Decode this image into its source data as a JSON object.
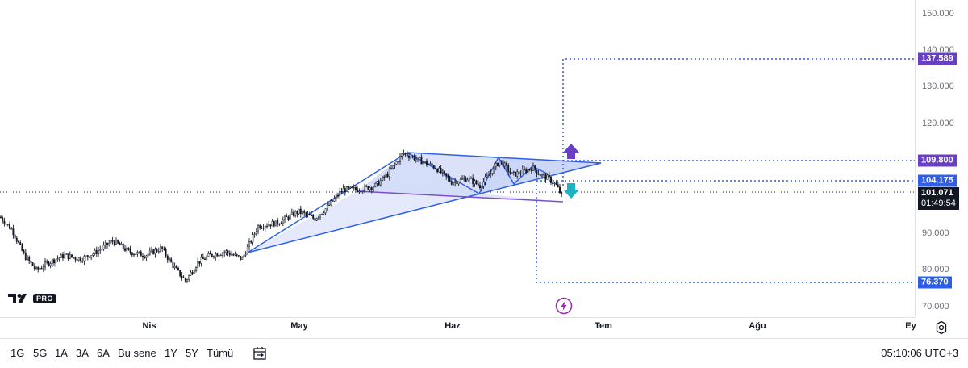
{
  "price_axis": {
    "ticks": [
      "150.000",
      "140.000",
      "130.000",
      "120.000",
      "90.000",
      "80.000",
      "70.000"
    ],
    "tags": {
      "target_up": "137.589",
      "breakout_level": "109.800",
      "support_level": "104.175",
      "current_price": "101.071",
      "countdown": "01:49:54",
      "target_down": "76.370"
    }
  },
  "time_axis": {
    "labels": [
      "Nis",
      "May",
      "Haz",
      "Tem",
      "Ağu",
      "Ey"
    ]
  },
  "toolbar": {
    "ranges": [
      "1G",
      "5G",
      "1A",
      "3A",
      "6A",
      "Bu sene",
      "1Y",
      "5Y",
      "Tümü"
    ],
    "clock": "05:10:06 UTC+3"
  },
  "logo": {
    "badge": "PRO"
  },
  "colors": {
    "up_arrow": "#6a3fc8",
    "down_arrow": "#19b3c4",
    "pattern_line": "#2f5fe8",
    "pattern_fill": "#dfe6fb",
    "candles": "#131722"
  },
  "icons": {
    "settings": "gear-icon",
    "date_range": "calendar-range-icon",
    "alert": "lightning-icon"
  },
  "chart_data": {
    "type": "candlestick",
    "y_range": [
      70,
      150
    ],
    "x_labels": [
      "Nis",
      "May",
      "Haz",
      "Tem",
      "Ağu",
      "Ey"
    ],
    "current_price": 101.071,
    "levels": [
      137.589,
      109.8,
      104.175,
      76.37
    ],
    "price_path": [
      [
        0,
        94.5
      ],
      [
        15,
        91
      ],
      [
        30,
        84
      ],
      [
        45,
        80
      ],
      [
        60,
        82
      ],
      [
        80,
        84
      ],
      [
        100,
        83
      ],
      [
        120,
        85
      ],
      [
        140,
        88
      ],
      [
        160,
        85
      ],
      [
        180,
        84
      ],
      [
        200,
        86
      ],
      [
        215,
        81
      ],
      [
        230,
        77
      ],
      [
        245,
        82
      ],
      [
        260,
        84
      ],
      [
        280,
        85
      ],
      [
        300,
        83
      ],
      [
        320,
        92
      ],
      [
        345,
        93
      ],
      [
        370,
        96
      ],
      [
        390,
        94
      ],
      [
        405,
        97
      ],
      [
        425,
        102
      ],
      [
        445,
        102
      ],
      [
        465,
        103
      ],
      [
        480,
        106
      ],
      [
        500,
        112
      ],
      [
        520,
        110
      ],
      [
        540,
        108
      ],
      [
        560,
        104
      ],
      [
        580,
        105
      ],
      [
        595,
        103
      ],
      [
        610,
        107
      ],
      [
        620,
        110
      ],
      [
        635,
        106
      ],
      [
        650,
        107
      ],
      [
        660,
        108
      ],
      [
        670,
        106
      ],
      [
        680,
        105
      ],
      [
        690,
        103
      ],
      [
        697,
        100
      ]
    ]
  }
}
